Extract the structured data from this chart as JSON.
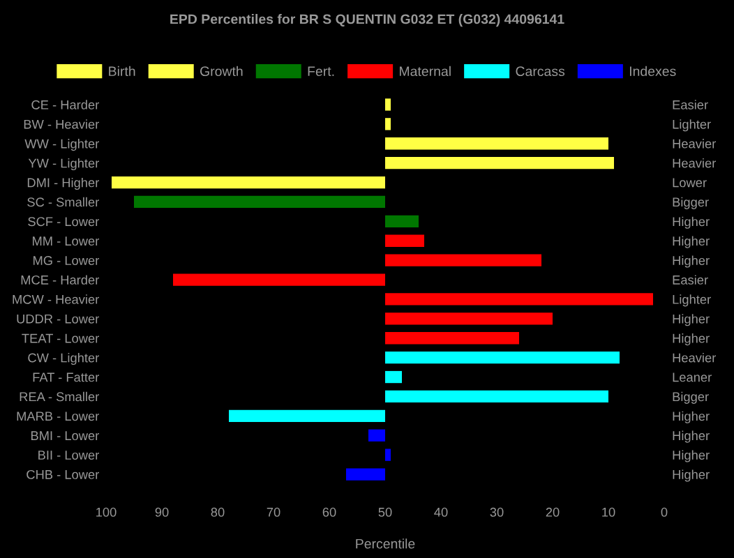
{
  "chart_data": {
    "type": "bar",
    "orientation": "horizontal",
    "title": "EPD Percentiles for BR S QUENTIN G032 ET (G032) 44096141",
    "xlabel": "Percentile",
    "categories": [
      "CE - Harder",
      "BW - Heavier",
      "WW - Lighter",
      "YW - Lighter",
      "DMI - Higher",
      "SC - Smaller",
      "SCF - Lower",
      "MM - Lower",
      "MG - Lower",
      "MCE - Harder",
      "MCW - Heavier",
      "UDDR - Lower",
      "TEAT - Lower",
      "CW - Lighter",
      "FAT - Fatter",
      "REA - Smaller",
      "MARB - Lower",
      "BMI - Lower",
      "BII - Lower",
      "CHB - Lower"
    ],
    "y2_categories": [
      "Easier",
      "Lighter",
      "Heavier",
      "Heavier",
      "Lower",
      "Bigger",
      "Higher",
      "Higher",
      "Higher",
      "Easier",
      "Lighter",
      "Higher",
      "Higher",
      "Heavier",
      "Leaner",
      "Bigger",
      "Higher",
      "Higher",
      "Higher",
      "Higher"
    ],
    "series": [
      {
        "name": "Birth",
        "color": "#ffff44",
        "values": [
          -1,
          -1,
          null,
          null,
          null,
          null,
          null,
          null,
          null,
          null,
          null,
          null,
          null,
          null,
          null,
          null,
          null,
          null,
          null,
          null
        ],
        "base": [
          50,
          50,
          null,
          null,
          null,
          null,
          null,
          null,
          null,
          null,
          null,
          null,
          null,
          null,
          null,
          null,
          null,
          null,
          null,
          null
        ]
      },
      {
        "name": "Growth",
        "color": "#ffff44",
        "values": [
          null,
          null,
          -40,
          -41,
          49,
          null,
          null,
          null,
          null,
          null,
          null,
          null,
          null,
          null,
          null,
          null,
          null,
          null,
          null,
          null
        ],
        "base": [
          null,
          null,
          50,
          50,
          50,
          null,
          null,
          null,
          null,
          null,
          null,
          null,
          null,
          null,
          null,
          null,
          null,
          null,
          null,
          null
        ]
      },
      {
        "name": "Fert.",
        "color": "#007700",
        "values": [
          null,
          null,
          null,
          null,
          null,
          45,
          -6,
          null,
          null,
          null,
          null,
          null,
          null,
          null,
          null,
          null,
          null,
          null,
          null,
          null
        ],
        "base": [
          null,
          null,
          null,
          null,
          null,
          50,
          50,
          null,
          null,
          null,
          null,
          null,
          null,
          null,
          null,
          null,
          null,
          null,
          null,
          null
        ]
      },
      {
        "name": "Maternal",
        "color": "#ff0000",
        "values": [
          null,
          null,
          null,
          null,
          null,
          null,
          null,
          -7,
          -28,
          38,
          -48,
          -30,
          -24,
          null,
          null,
          null,
          null,
          null,
          null,
          null
        ],
        "base": [
          null,
          null,
          null,
          null,
          null,
          null,
          null,
          50,
          50,
          50,
          50,
          50,
          50,
          null,
          null,
          null,
          null,
          null,
          null,
          null
        ]
      },
      {
        "name": "Carcass",
        "color": "#00ffff",
        "values": [
          null,
          null,
          null,
          null,
          null,
          null,
          null,
          null,
          null,
          null,
          null,
          null,
          null,
          -42,
          -3,
          -40,
          28,
          null,
          null,
          null
        ],
        "base": [
          null,
          null,
          null,
          null,
          null,
          null,
          null,
          null,
          null,
          null,
          null,
          null,
          null,
          50,
          50,
          50,
          50,
          null,
          null,
          null
        ]
      },
      {
        "name": "Indexes",
        "color": "#0000ff",
        "values": [
          null,
          null,
          null,
          null,
          null,
          null,
          null,
          null,
          null,
          null,
          null,
          null,
          null,
          null,
          null,
          null,
          null,
          3,
          -1,
          7
        ],
        "base": [
          null,
          null,
          null,
          null,
          null,
          null,
          null,
          null,
          null,
          null,
          null,
          null,
          null,
          null,
          null,
          null,
          null,
          50,
          50,
          50
        ]
      }
    ],
    "xlim": [
      100,
      0
    ],
    "xticks": [
      100,
      90,
      80,
      70,
      60,
      50,
      40,
      30,
      20,
      10,
      0
    ],
    "grid": false,
    "legend": "top"
  }
}
